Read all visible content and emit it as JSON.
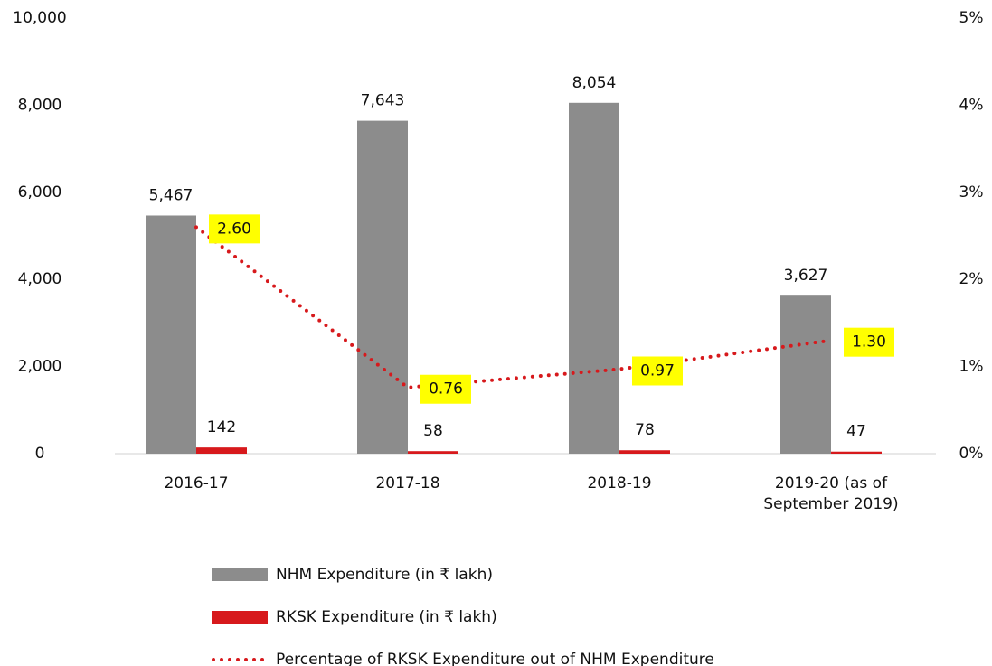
{
  "chart_data": {
    "type": "bar",
    "categories": [
      "2016-17",
      "2017-18",
      "2018-19",
      "2019-20 (as of September 2019)"
    ],
    "series": [
      {
        "name": "NHM Expenditure (in ₹ lakh)",
        "color": "#8c8c8c",
        "values": [
          5467,
          7643,
          8054,
          3627
        ],
        "value_labels": [
          "5,467",
          "7,643",
          "8,054",
          "3,627"
        ]
      },
      {
        "name": "RKSK Expenditure (in ₹ lakh)",
        "color": "#d7191c",
        "values": [
          142,
          58,
          78,
          47
        ]
      },
      {
        "name": "Percentage of RKSK Expenditure out of NHM Expenditure",
        "type": "line",
        "axis": "y2",
        "color": "#d7191c",
        "values": [
          2.6,
          0.76,
          0.97,
          1.3
        ],
        "value_labels": [
          "2.60",
          "0.76",
          "0.97",
          "1.30"
        ],
        "label_background": "#ffff00"
      }
    ],
    "ylim": [
      0,
      10000
    ],
    "yticks": [
      0,
      {
        "value": 2000,
        "label": "2,000"
      },
      {
        "value": 4000,
        "label": "4,000"
      },
      {
        "value": 6000,
        "label": "6,000"
      },
      {
        "value": 8000,
        "label": "8,000"
      },
      {
        "value": 10000,
        "label": "10,000"
      }
    ],
    "y2lim": [
      0,
      5
    ],
    "y2ticks": [
      {
        "value": 0,
        "label": "0%"
      },
      {
        "value": 1,
        "label": "1%"
      },
      {
        "value": 2,
        "label": "2%"
      },
      {
        "value": 3,
        "label": "3%"
      },
      {
        "value": 4,
        "label": "4%"
      },
      {
        "value": 5,
        "label": "5%"
      }
    ],
    "grid": false,
    "legend": "bottom"
  }
}
